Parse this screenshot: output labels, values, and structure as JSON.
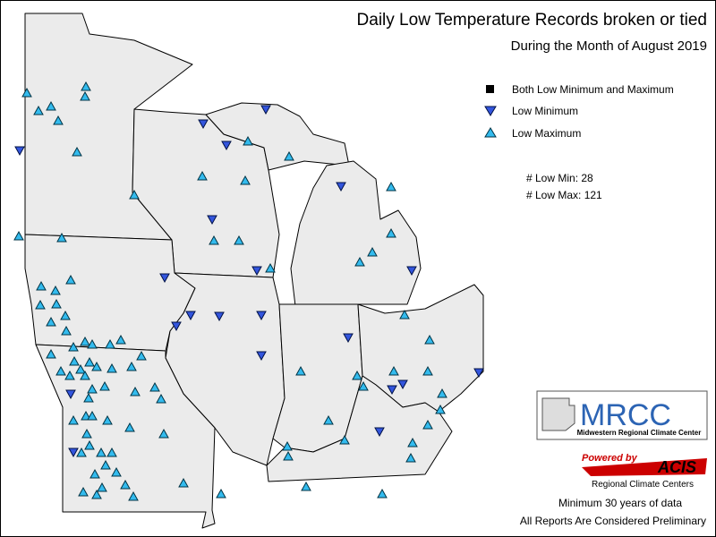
{
  "title": "Daily Low Temperature Records broken or tied",
  "subtitle": "During the Month of August 2019",
  "legend": [
    {
      "label": "Both Low Minimum and Maximum"
    },
    {
      "label": "Low Minimum"
    },
    {
      "label": "Low Maximum"
    }
  ],
  "counts": [
    "# Low Min: 28",
    "# Low Max: 121"
  ],
  "logo": {
    "name": "MRCC",
    "subtitle": "Midwestern Regional Climate Center"
  },
  "powered": {
    "by": "Powered by",
    "name": "ACIS",
    "subtitle": "Regional Climate Centers"
  },
  "footer": [
    "Minimum 30 years of data",
    "All Reports Are Considered Preliminary"
  ]
}
